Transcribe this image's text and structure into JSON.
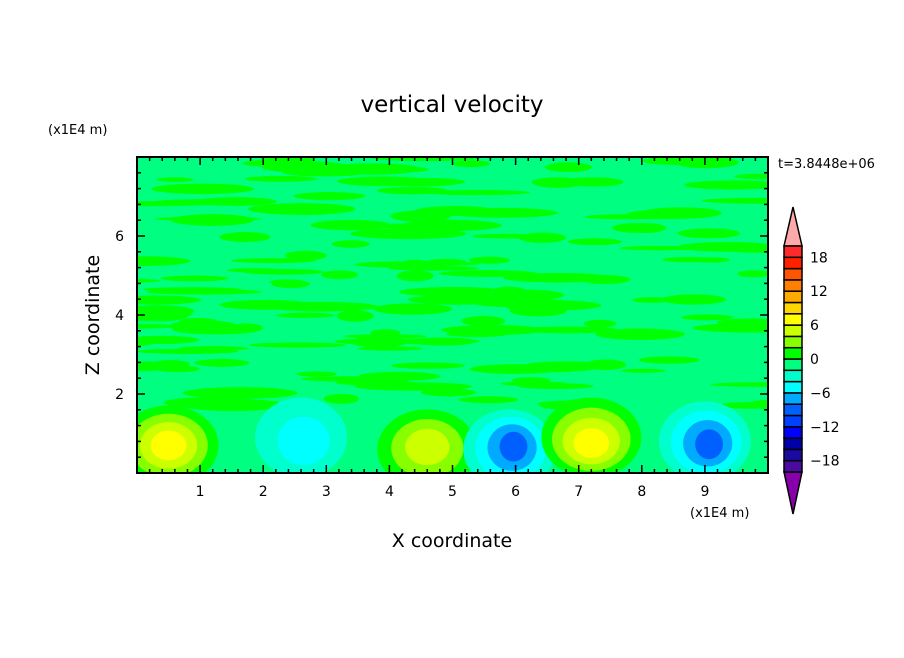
{
  "chart_data": {
    "type": "heatmap",
    "title": "vertical velocity",
    "xlabel": "X coordinate",
    "ylabel": "Z coordinate",
    "x_unit": "(x1E4 m)",
    "y_unit": "(x1E4 m)",
    "time_label": "t=3.8448e+06",
    "xlim": [
      0,
      10
    ],
    "ylim": [
      0,
      8
    ],
    "x_ticks": [
      "1",
      "2",
      "3",
      "4",
      "5",
      "6",
      "7",
      "8",
      "9"
    ],
    "y_ticks": [
      "2",
      "4",
      "6"
    ],
    "grid": false,
    "colorbar": {
      "levels": [
        -20,
        -18,
        -16,
        -14,
        -12,
        -10,
        -8,
        -6,
        -4,
        -2,
        0,
        2,
        4,
        6,
        8,
        10,
        12,
        14,
        16,
        18,
        20
      ],
      "tick_labels": [
        "18",
        "12",
        "6",
        "0",
        "-6",
        "-12",
        "-18"
      ],
      "tick_values": [
        18,
        12,
        6,
        0,
        -6,
        -12,
        -18
      ],
      "colors": [
        "#4b0aa0",
        "#1a0aa0",
        "#0000aa",
        "#0000ff",
        "#0040ff",
        "#0060ff",
        "#00aaff",
        "#00ffff",
        "#00ffcc",
        "#00ff80",
        "#00ff00",
        "#88ff00",
        "#ccff00",
        "#ffff00",
        "#ffd700",
        "#ffaa00",
        "#ff7f00",
        "#ff5500",
        "#ff2000",
        "#ff2a2a"
      ],
      "over_color": "#ffaaaa",
      "under_color": "#8800aa"
    },
    "features": [
      {
        "x": 0.5,
        "z": 0.7,
        "peak": 7
      },
      {
        "x": 2.6,
        "z": 0.9,
        "peak": -5
      },
      {
        "x": 4.6,
        "z": 0.6,
        "peak": 5
      },
      {
        "x": 5.9,
        "z": 0.6,
        "peak": -9
      },
      {
        "x": 7.2,
        "z": 0.9,
        "peak": 7
      },
      {
        "x": 9.0,
        "z": 0.8,
        "peak": -9
      }
    ]
  }
}
